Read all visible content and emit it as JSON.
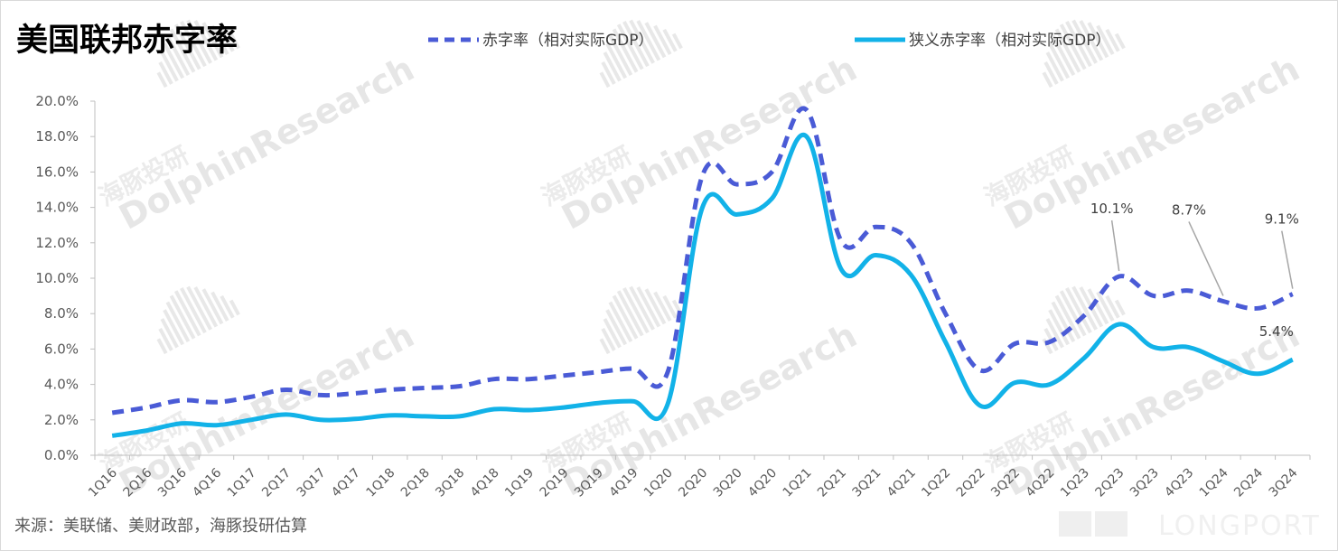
{
  "title": "美国联邦赤字率",
  "source": "来源：美联储、美财政部，海豚投研估算",
  "watermark": {
    "en": "DolphinResearch",
    "cn": "海豚投研",
    "brand": "LONGPORT"
  },
  "colors": {
    "dashed": "#4a5bd6",
    "solid": "#12b2e8",
    "axis": "#bfbfbf",
    "text": "#595959"
  },
  "chart_data": {
    "type": "line",
    "title": "美国联邦赤字率",
    "xlabel": "",
    "ylabel": "",
    "ylim": [
      0,
      20
    ],
    "yticks": [
      "0.0%",
      "2.0%",
      "4.0%",
      "6.0%",
      "8.0%",
      "10.0%",
      "12.0%",
      "14.0%",
      "16.0%",
      "18.0%",
      "20.0%"
    ],
    "grid": false,
    "legend": "top",
    "categories": [
      "1Q16",
      "2Q16",
      "3Q16",
      "4Q16",
      "1Q17",
      "2Q17",
      "3Q17",
      "4Q17",
      "1Q18",
      "2Q18",
      "3Q18",
      "4Q18",
      "1Q19",
      "2Q19",
      "3Q19",
      "4Q19",
      "1Q20",
      "2Q20",
      "3Q20",
      "4Q20",
      "1Q21",
      "2Q21",
      "3Q21",
      "4Q21",
      "1Q22",
      "2Q22",
      "3Q22",
      "4Q22",
      "1Q23",
      "2Q23",
      "3Q23",
      "4Q23",
      "1Q24",
      "2Q24",
      "3Q24"
    ],
    "series": [
      {
        "name": "赤字率（相对实际GDP）",
        "style": "dashed",
        "color": "#4a5bd6",
        "values": [
          2.4,
          2.7,
          3.1,
          3.0,
          3.3,
          3.7,
          3.4,
          3.5,
          3.7,
          3.8,
          3.9,
          4.3,
          4.3,
          4.5,
          4.7,
          4.9,
          4.7,
          15.8,
          15.3,
          16.0,
          19.5,
          12.1,
          12.9,
          12.0,
          8.0,
          4.8,
          6.3,
          6.4,
          7.9,
          10.1,
          9.0,
          9.3,
          8.7,
          8.3,
          9.1
        ]
      },
      {
        "name": "狭义赤字率（相对实际GDP）",
        "style": "solid",
        "color": "#12b2e8",
        "values": [
          1.1,
          1.4,
          1.8,
          1.7,
          2.0,
          2.3,
          2.0,
          2.05,
          2.25,
          2.2,
          2.2,
          2.6,
          2.55,
          2.7,
          2.95,
          3.05,
          2.9,
          14.0,
          13.6,
          14.5,
          18.0,
          10.5,
          11.3,
          10.2,
          6.4,
          2.8,
          4.1,
          4.0,
          5.5,
          7.4,
          6.1,
          6.1,
          5.3,
          4.6,
          5.4
        ]
      }
    ],
    "annotations": [
      {
        "text": "10.1%",
        "series": 0,
        "category": "2Q23"
      },
      {
        "text": "8.7%",
        "series": 0,
        "category": "1Q24"
      },
      {
        "text": "9.1%",
        "series": 0,
        "category": "3Q24"
      },
      {
        "text": "5.4%",
        "series": 1,
        "category": "3Q24"
      }
    ]
  }
}
